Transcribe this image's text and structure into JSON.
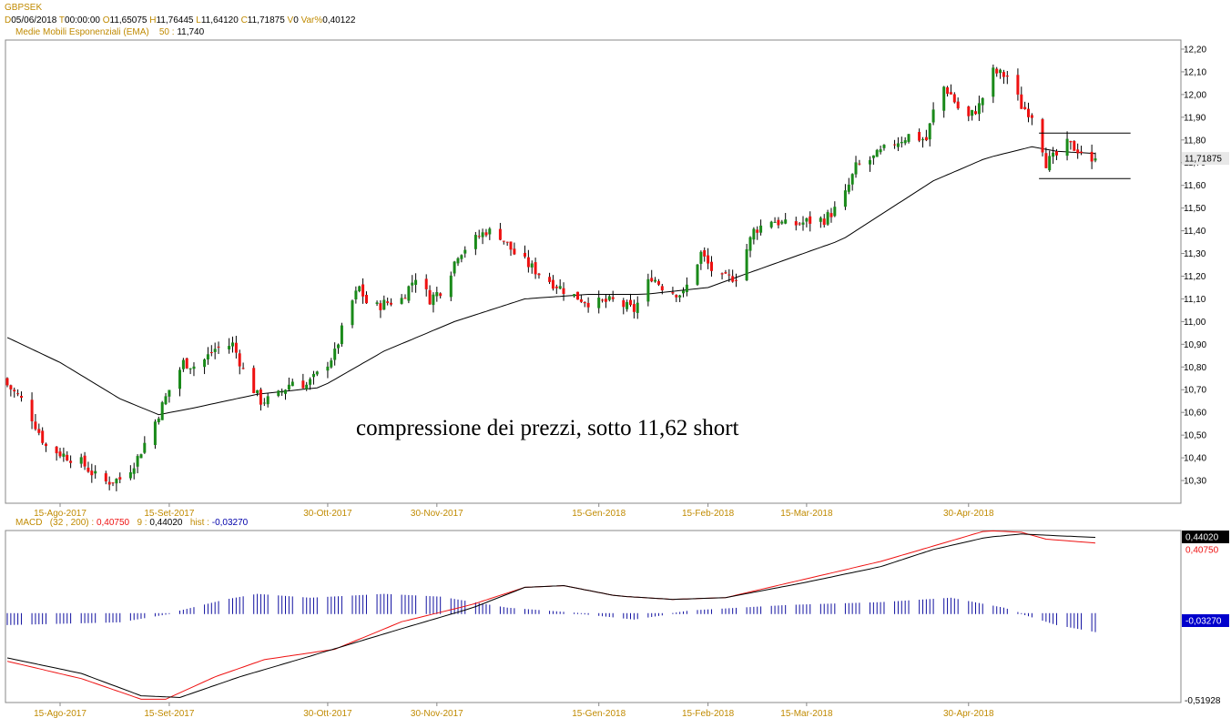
{
  "symbol": "GBPSEK",
  "header": {
    "d_label": "D",
    "d_value": "05/06/2018",
    "t_label": "T",
    "t_value": "00:00:00",
    "o_label": "O",
    "o_value": "11,65075",
    "h_label": "H",
    "h_value": "11,76445",
    "l_label": "L",
    "l_value": "11,64120",
    "c_label": "C",
    "c_value": "11,71875",
    "v_label": "V",
    "v_value": "0",
    "var_label": "Var%",
    "var_value": "0,40122"
  },
  "ema_legend": {
    "label": "Medie Mobili Esponenziali (EMA)",
    "period": "50 :",
    "value": "11,740"
  },
  "annotation": "compressione dei prezzi, sotto 11,62 short",
  "price_axis": {
    "ticks": [
      "12,20",
      "12,10",
      "12,00",
      "11,90",
      "11,80",
      "11,70",
      "11,60",
      "11,50",
      "11,40",
      "11,30",
      "11,20",
      "11,10",
      "11,00",
      "10,90",
      "10,80",
      "10,70",
      "10,60",
      "10,50",
      "10,40",
      "10,30"
    ],
    "last_price_label": "11,71875"
  },
  "date_labels": [
    "15-Ago-2017",
    "15-Set-2017",
    "30-Ott-2017",
    "30-Nov-2017",
    "15-Gen-2018",
    "15-Feb-2018",
    "15-Mar-2018",
    "30-Apr-2018"
  ],
  "macd_legend": {
    "label": "MACD",
    "params": "(32 , 200) :",
    "macd_value": "0,40750",
    "signal_label": "9 :",
    "signal_value": "0,44020",
    "hist_label": "hist :",
    "hist_value": "-0,03270"
  },
  "macd_axis": {
    "top": "0,44020",
    "top_red": "0,40750",
    "hist": "-0,03270",
    "bottom": "-0,51928"
  },
  "colors": {
    "up": "#1a8a1a",
    "down": "#ee1111",
    "ema": "#000000",
    "macd_line": "#ee1111",
    "signal_line": "#000000",
    "hist": "#1010a0",
    "label_orange": "#c08a00",
    "price_box": "#e8e8e8",
    "red_box": "#ee1111",
    "black_box": "#000000",
    "blue_box": "#0000cc"
  },
  "chart_data": [
    {
      "type": "candlestick",
      "title": "GBPSEK",
      "ylim": [
        10.2,
        12.24
      ],
      "x_range": [
        "2017-07-31",
        "2018-06-05"
      ],
      "price_anchors": [
        [
          "2017-07-31",
          10.72
        ],
        [
          "2017-08-05",
          10.64
        ],
        [
          "2017-08-11",
          10.45
        ],
        [
          "2017-08-15",
          10.42
        ],
        [
          "2017-08-21",
          10.38
        ],
        [
          "2017-08-27",
          10.29
        ],
        [
          "2017-09-02",
          10.31
        ],
        [
          "2017-09-06",
          10.4
        ],
        [
          "2017-09-11",
          10.56
        ],
        [
          "2017-09-15",
          10.7
        ],
        [
          "2017-09-19",
          10.82
        ],
        [
          "2017-09-23",
          10.8
        ],
        [
          "2017-09-28",
          10.88
        ],
        [
          "2017-10-03",
          10.9
        ],
        [
          "2017-10-07",
          10.75
        ],
        [
          "2017-10-11",
          10.65
        ],
        [
          "2017-10-15",
          10.66
        ],
        [
          "2017-10-20",
          10.74
        ],
        [
          "2017-10-24",
          10.72
        ],
        [
          "2017-10-28",
          10.78
        ],
        [
          "2017-11-01",
          10.86
        ],
        [
          "2017-11-05",
          11.06
        ],
        [
          "2017-11-08",
          11.15
        ],
        [
          "2017-11-11",
          11.05
        ],
        [
          "2017-11-15",
          11.08
        ],
        [
          "2017-11-20",
          11.1
        ],
        [
          "2017-11-24",
          11.2
        ],
        [
          "2017-11-28",
          11.1
        ],
        [
          "2017-12-02",
          11.15
        ],
        [
          "2017-12-06",
          11.3
        ],
        [
          "2017-12-10",
          11.35
        ],
        [
          "2017-12-14",
          11.4
        ],
        [
          "2017-12-18",
          11.38
        ],
        [
          "2017-12-22",
          11.3
        ],
        [
          "2017-12-26",
          11.25
        ],
        [
          "2017-12-30",
          11.2
        ],
        [
          "2018-01-03",
          11.16
        ],
        [
          "2018-01-07",
          11.12
        ],
        [
          "2018-01-13",
          11.08
        ],
        [
          "2018-01-19",
          11.09
        ],
        [
          "2018-01-25",
          11.05
        ],
        [
          "2018-01-30",
          11.2
        ],
        [
          "2018-02-03",
          11.14
        ],
        [
          "2018-02-08",
          11.12
        ],
        [
          "2018-02-13",
          11.3
        ],
        [
          "2018-02-18",
          11.18
        ],
        [
          "2018-02-23",
          11.2
        ],
        [
          "2018-02-28",
          11.4
        ],
        [
          "2018-03-05",
          11.45
        ],
        [
          "2018-03-10",
          11.42
        ],
        [
          "2018-03-15",
          11.44
        ],
        [
          "2018-03-20",
          11.45
        ],
        [
          "2018-03-25",
          11.52
        ],
        [
          "2018-03-29",
          11.68
        ],
        [
          "2018-04-03",
          11.72
        ],
        [
          "2018-04-08",
          11.78
        ],
        [
          "2018-04-13",
          11.82
        ],
        [
          "2018-04-18",
          11.8
        ],
        [
          "2018-04-22",
          12.05
        ],
        [
          "2018-04-25",
          12.0
        ],
        [
          "2018-04-29",
          11.88
        ],
        [
          "2018-05-03",
          11.95
        ],
        [
          "2018-05-07",
          12.1
        ],
        [
          "2018-05-11",
          12.08
        ],
        [
          "2018-05-15",
          11.95
        ],
        [
          "2018-05-19",
          11.9
        ],
        [
          "2018-05-22",
          11.7
        ],
        [
          "2018-05-25",
          11.73
        ],
        [
          "2018-05-28",
          11.78
        ],
        [
          "2018-06-01",
          11.75
        ],
        [
          "2018-06-03",
          11.66
        ],
        [
          "2018-06-05",
          11.71875
        ]
      ],
      "ema_anchors": [
        [
          "2017-07-31",
          10.93
        ],
        [
          "2017-08-15",
          10.82
        ],
        [
          "2017-09-01",
          10.66
        ],
        [
          "2017-09-12",
          10.59
        ],
        [
          "2017-09-22",
          10.62
        ],
        [
          "2017-10-10",
          10.68
        ],
        [
          "2017-10-28",
          10.71
        ],
        [
          "2017-11-15",
          10.87
        ],
        [
          "2017-12-05",
          11.0
        ],
        [
          "2017-12-25",
          11.1
        ],
        [
          "2018-01-12",
          11.12
        ],
        [
          "2018-01-28",
          11.12
        ],
        [
          "2018-02-15",
          11.15
        ],
        [
          "2018-03-05",
          11.25
        ],
        [
          "2018-03-25",
          11.36
        ],
        [
          "2018-04-10",
          11.52
        ],
        [
          "2018-04-20",
          11.62
        ],
        [
          "2018-05-05",
          11.72
        ],
        [
          "2018-05-18",
          11.77
        ],
        [
          "2018-05-25",
          11.75
        ],
        [
          "2018-06-05",
          11.74
        ]
      ],
      "support_level": 11.63,
      "resistance_level": 11.83,
      "range_lines_start": "2018-05-20",
      "range_lines_end": "2018-06-15",
      "last_close": 11.71875
    },
    {
      "type": "line",
      "title": "MACD",
      "ylim": [
        -0.51928,
        0.48
      ],
      "series": [
        {
          "name": "MACD",
          "anchors": [
            [
              "2017-07-31",
              -0.28
            ],
            [
              "2017-08-21",
              -0.38
            ],
            [
              "2017-09-07",
              -0.5
            ],
            [
              "2017-09-14",
              -0.5
            ],
            [
              "2017-09-28",
              -0.37
            ],
            [
              "2017-10-12",
              -0.27
            ],
            [
              "2017-11-01",
              -0.21
            ],
            [
              "2017-11-20",
              -0.05
            ],
            [
              "2017-12-10",
              0.05
            ],
            [
              "2017-12-25",
              0.15
            ],
            [
              "2018-01-05",
              0.16
            ],
            [
              "2018-01-20",
              0.1
            ],
            [
              "2018-02-05",
              0.08
            ],
            [
              "2018-02-20",
              0.09
            ],
            [
              "2018-03-15",
              0.2
            ],
            [
              "2018-04-05",
              0.3
            ],
            [
              "2018-04-20",
              0.39
            ],
            [
              "2018-05-05",
              0.48
            ],
            [
              "2018-05-15",
              0.47
            ],
            [
              "2018-05-22",
              0.43
            ],
            [
              "2018-06-05",
              0.4075
            ]
          ]
        },
        {
          "name": "Signal",
          "anchors": [
            [
              "2017-07-31",
              -0.26
            ],
            [
              "2017-08-21",
              -0.35
            ],
            [
              "2017-09-07",
              -0.48
            ],
            [
              "2017-09-18",
              -0.49
            ],
            [
              "2017-10-05",
              -0.37
            ],
            [
              "2017-10-25",
              -0.25
            ],
            [
              "2017-11-20",
              -0.09
            ],
            [
              "2017-12-10",
              0.03
            ],
            [
              "2017-12-25",
              0.15
            ],
            [
              "2018-01-05",
              0.16
            ],
            [
              "2018-01-20",
              0.1
            ],
            [
              "2018-02-05",
              0.08
            ],
            [
              "2018-02-20",
              0.09
            ],
            [
              "2018-03-15",
              0.18
            ],
            [
              "2018-04-05",
              0.27
            ],
            [
              "2018-04-20",
              0.37
            ],
            [
              "2018-05-05",
              0.44
            ],
            [
              "2018-05-15",
              0.46
            ],
            [
              "2018-05-25",
              0.45
            ],
            [
              "2018-06-05",
              0.4402
            ]
          ]
        }
      ],
      "histogram_anchors": [
        [
          "2017-07-31",
          -0.02
        ],
        [
          "2017-09-01",
          -0.015
        ],
        [
          "2017-09-15",
          0.0
        ],
        [
          "2017-10-01",
          0.025
        ],
        [
          "2017-10-10",
          0.035
        ],
        [
          "2017-10-25",
          0.028
        ],
        [
          "2017-11-15",
          0.035
        ],
        [
          "2017-12-01",
          0.03
        ],
        [
          "2017-12-20",
          0.01
        ],
        [
          "2018-01-10",
          0.0
        ],
        [
          "2018-01-25",
          -0.01
        ],
        [
          "2018-02-10",
          0.005
        ],
        [
          "2018-03-10",
          0.015
        ],
        [
          "2018-04-05",
          0.02
        ],
        [
          "2018-04-25",
          0.028
        ],
        [
          "2018-05-10",
          0.01
        ],
        [
          "2018-05-25",
          -0.02
        ],
        [
          "2018-06-05",
          -0.0327
        ]
      ]
    }
  ]
}
